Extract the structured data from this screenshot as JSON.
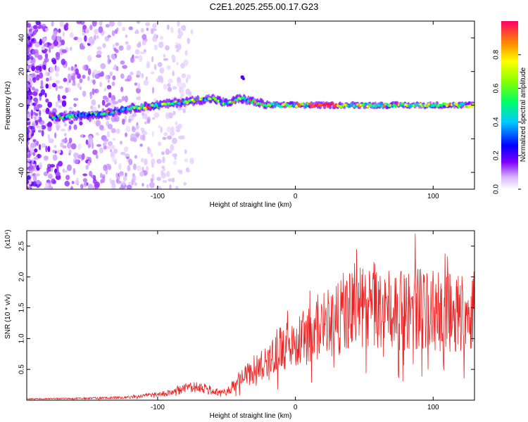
{
  "title": "C2E1.2025.255.00.17.G23",
  "chart_data": [
    {
      "type": "heatmap",
      "xlabel": "Height of straight line (km)",
      "ylabel": "Frequency (Hz)",
      "xlim": [
        -195,
        130
      ],
      "ylim": [
        -50,
        50
      ],
      "xticks": [
        -100,
        0,
        100
      ],
      "yticks": [
        -40,
        -20,
        0,
        20,
        40
      ],
      "colorbar": {
        "label": "Normalized spectral amplitude",
        "range": [
          0,
          1
        ],
        "ticks": [
          "0.0",
          "0.2",
          "0.4",
          "0.6",
          "0.8"
        ],
        "tick_values": [
          0.0,
          0.2,
          0.4,
          0.6,
          0.8
        ]
      },
      "ridge": {
        "description_points_x": [
          -170,
          -140,
          -120,
          -100,
          -80,
          -60,
          -50,
          -40,
          -30,
          -20,
          0,
          20,
          40,
          60,
          80,
          100,
          130
        ],
        "frequency_hz": [
          -7,
          -5,
          -2,
          0,
          2,
          4,
          1,
          4,
          2,
          0,
          0,
          0,
          0,
          0,
          0,
          0,
          0
        ]
      }
    },
    {
      "type": "line",
      "xlabel": "Height of straight line (km)",
      "ylabel": "SNR (10 * v/v)",
      "y_scale_label": "(x10⁴)",
      "xlim": [
        -195,
        130
      ],
      "ylim": [
        0,
        2.75
      ],
      "xticks": [
        -100,
        0,
        100
      ],
      "yticks": [
        0.5,
        1.0,
        1.5,
        2.0,
        2.5
      ],
      "ytick_labels": [
        "0.5",
        "1.0",
        "1.5",
        "2.0",
        "2.5"
      ],
      "series": [
        {
          "name": "SNR",
          "color": "#ee2222",
          "envelope_x": [
            -195,
            -150,
            -120,
            -105,
            -90,
            -80,
            -70,
            -60,
            -50,
            -40,
            -30,
            -20,
            -10,
            0,
            10,
            20,
            30,
            40,
            50,
            60,
            70,
            80,
            90,
            100,
            110,
            120,
            130
          ],
          "envelope_mean": [
            0.02,
            0.03,
            0.05,
            0.08,
            0.12,
            0.18,
            0.22,
            0.15,
            0.12,
            0.35,
            0.45,
            0.7,
            0.85,
            0.95,
            1.05,
            1.2,
            1.3,
            1.45,
            1.5,
            1.45,
            1.45,
            1.45,
            1.5,
            1.45,
            1.4,
            1.45,
            1.45
          ],
          "peak_value": 2.7,
          "peak_x": 87
        }
      ]
    }
  ]
}
